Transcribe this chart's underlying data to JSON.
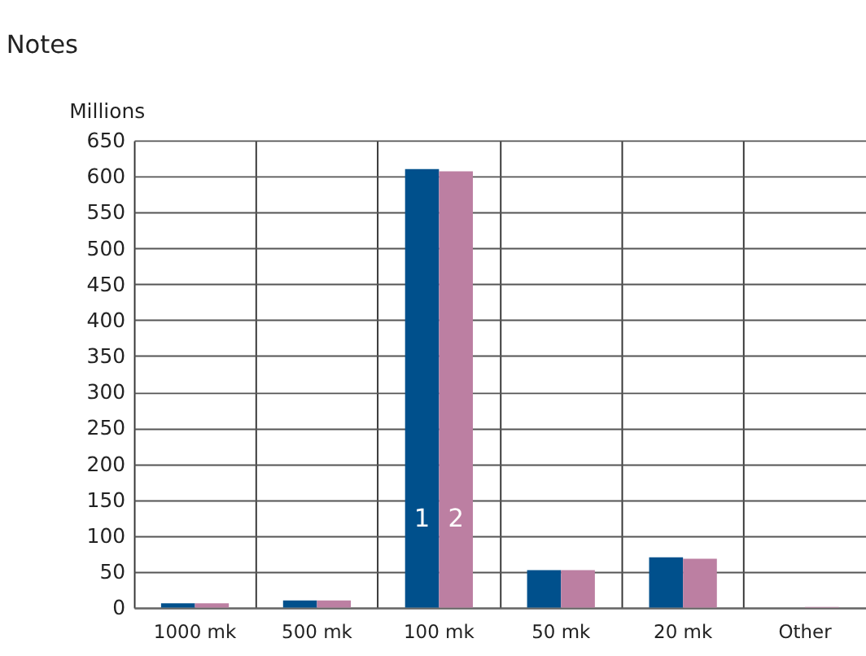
{
  "chart_data": {
    "type": "bar",
    "title": "Notes",
    "ylabel": "Millions",
    "categories": [
      "1000 mk",
      "500 mk",
      "100 mk",
      "50 mk",
      "20 mk",
      "Other"
    ],
    "series": [
      {
        "name": "1",
        "color": "#00508c",
        "values": [
          6,
          10,
          610,
          52,
          70,
          0
        ]
      },
      {
        "name": "2",
        "color": "#bc7fa2",
        "values": [
          6,
          10,
          607,
          52,
          68,
          1
        ]
      }
    ],
    "ylim": [
      0,
      650
    ],
    "yticks": [
      0,
      50,
      100,
      150,
      200,
      250,
      300,
      350,
      400,
      450,
      500,
      550,
      600,
      650
    ],
    "grid": true,
    "legend": false
  }
}
